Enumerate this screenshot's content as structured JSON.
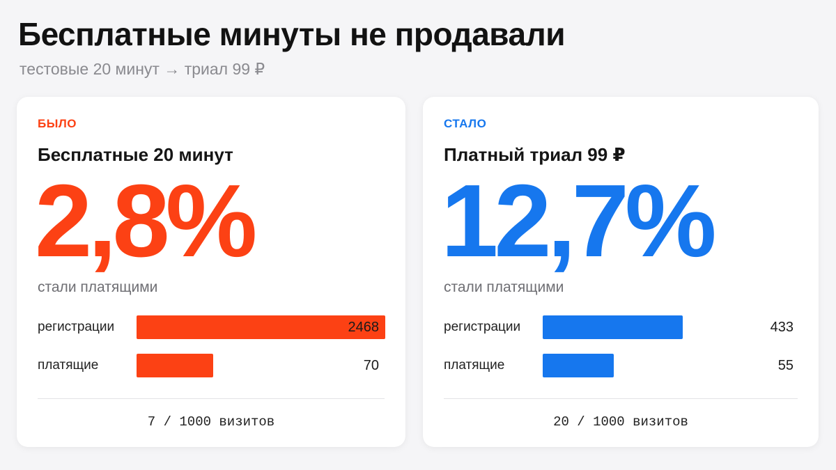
{
  "header": {
    "title": "Бесплатные минуты не продавали",
    "subtitle": "тестовые 20 минут → триал 99 ₽"
  },
  "colors": {
    "before": "#fc4114",
    "after": "#1677ee"
  },
  "chart_data": [
    {
      "type": "bar",
      "orientation": "horizontal",
      "tag": "БЫЛО",
      "title": "Бесплатные 20 минут",
      "headline": "2,8%",
      "caption": "стали платящими",
      "categories": [
        "регистрации",
        "платящие"
      ],
      "values": [
        2468,
        70
      ],
      "value_labels": [
        "2468",
        "70"
      ],
      "footer": "7 / 1000 визитов"
    },
    {
      "type": "bar",
      "orientation": "horizontal",
      "tag": "СТАЛО",
      "title": "Платный триал 99 ₽",
      "headline": "12,7%",
      "caption": "стали платящими",
      "categories": [
        "регистрации",
        "платящие"
      ],
      "values": [
        433,
        55
      ],
      "value_labels": [
        "433",
        "55"
      ],
      "footer": "20 / 1000 визитов"
    }
  ]
}
